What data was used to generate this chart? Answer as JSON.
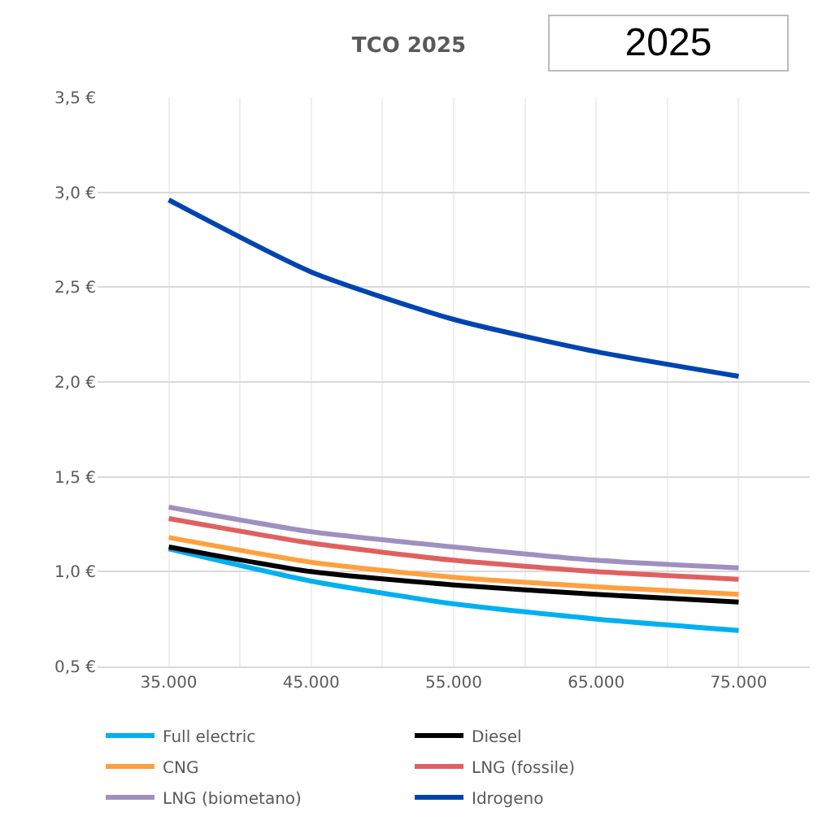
{
  "chart_data": {
    "type": "line",
    "title": "TCO 2025",
    "annotations": [
      "2025"
    ],
    "x": [
      35000,
      45000,
      55000,
      65000,
      75000
    ],
    "xlim": [
      30000,
      80000
    ],
    "xticks": [
      {
        "value": 35000,
        "label": "35.000"
      },
      {
        "value": 40000,
        "label": null
      },
      {
        "value": 45000,
        "label": "45.000"
      },
      {
        "value": 50000,
        "label": null
      },
      {
        "value": 55000,
        "label": "55.000"
      },
      {
        "value": 60000,
        "label": null
      },
      {
        "value": 65000,
        "label": "65.000"
      },
      {
        "value": 70000,
        "label": null
      },
      {
        "value": 75000,
        "label": "75.000"
      }
    ],
    "ylim": [
      0.5,
      3.5
    ],
    "yticks": [
      {
        "value": 0.5,
        "label": "0,5 €"
      },
      {
        "value": 1.0,
        "label": "1,0 €"
      },
      {
        "value": 1.5,
        "label": "1,5 €"
      },
      {
        "value": 2.0,
        "label": "2,0 €"
      },
      {
        "value": 2.5,
        "label": "2,5 €"
      },
      {
        "value": 3.0,
        "label": "3,0 €"
      },
      {
        "value": 3.5,
        "label": "3,5 €"
      }
    ],
    "grid": true,
    "legend": "bottom",
    "marker": "none",
    "line_style": "solid",
    "series": [
      {
        "name": "Full electric",
        "color": "#00b0f0",
        "values": [
          1.12,
          0.95,
          0.83,
          0.75,
          0.69
        ]
      },
      {
        "name": "Diesel",
        "color": "#000000",
        "values": [
          1.13,
          1.0,
          0.93,
          0.88,
          0.84
        ]
      },
      {
        "name": "CNG",
        "color": "#ffa040",
        "values": [
          1.18,
          1.05,
          0.97,
          0.92,
          0.88
        ]
      },
      {
        "name": "LNG (fossile)",
        "color": "#e06060",
        "values": [
          1.28,
          1.15,
          1.06,
          1.0,
          0.96
        ]
      },
      {
        "name": "LNG (biometano)",
        "color": "#a090c0",
        "values": [
          1.34,
          1.21,
          1.13,
          1.06,
          1.02
        ]
      },
      {
        "name": "Idrogeno",
        "color": "#0044b0",
        "values": [
          2.96,
          2.58,
          2.33,
          2.16,
          2.03
        ]
      }
    ]
  }
}
